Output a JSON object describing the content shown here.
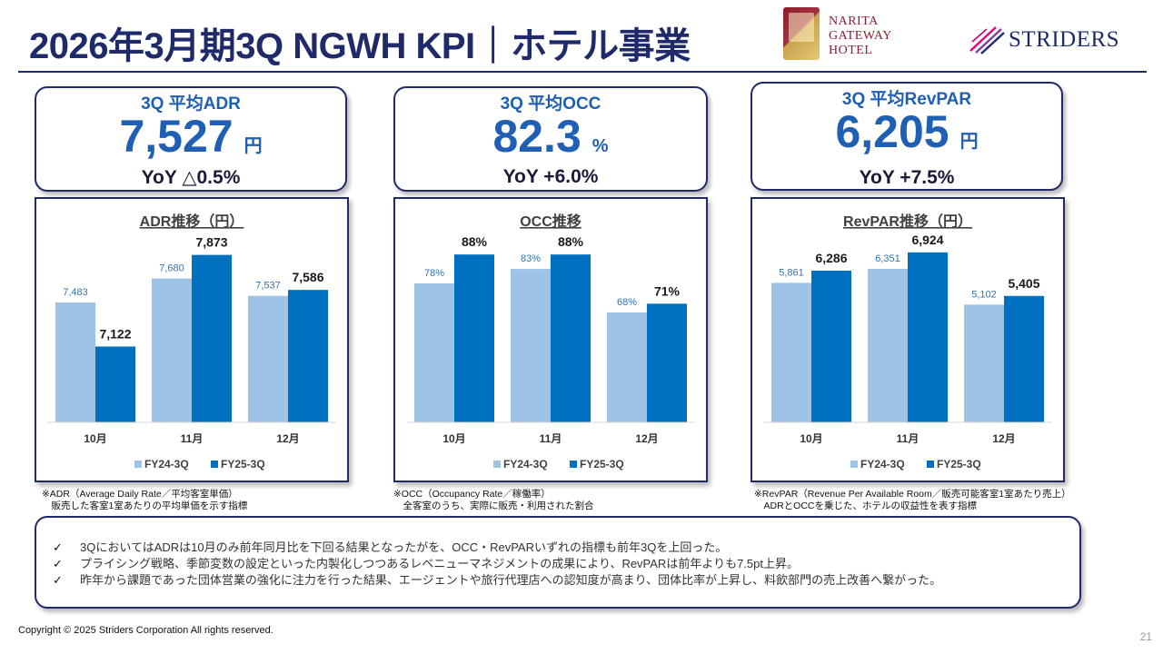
{
  "header": {
    "title": "2026年3月期3Q NGWH KPI｜ホテル事業",
    "hotel_logo_lines": [
      "NARITA",
      "GATEWAY",
      "HOTEL"
    ],
    "brand_name": "STRIDERS"
  },
  "kpis": [
    {
      "label": "3Q 平均ADR",
      "value": "7,527",
      "unit": "円",
      "yoy": "YoY  △0.5%"
    },
    {
      "label": "3Q 平均OCC",
      "value": "82.3",
      "unit": "%",
      "yoy": "YoY  +6.0%"
    },
    {
      "label": "3Q 平均RevPAR",
      "value": "6,205",
      "unit": "円",
      "yoy": "YoY  +7.5%"
    }
  ],
  "colors": {
    "navy": "#1f2a6b",
    "accent_blue": "#1f5fb4",
    "fy24": "#9dc3e6",
    "fy25": "#0070c0"
  },
  "chart_data": [
    {
      "type": "bar",
      "title": "ADR推移（円）",
      "categories": [
        "10月",
        "11月",
        "12月"
      ],
      "series": [
        {
          "name": "FY24-3Q",
          "values": [
            7483,
            7680,
            7537
          ],
          "labels": [
            "7,483",
            "7,680",
            "7,537"
          ]
        },
        {
          "name": "FY25-3Q",
          "values": [
            7122,
            7873,
            7586
          ],
          "labels": [
            "7,122",
            "7,873",
            "7,586"
          ]
        }
      ],
      "ylim": [
        6500,
        7900
      ],
      "legend": "bottom",
      "grid": false
    },
    {
      "type": "bar",
      "title": "OCC推移",
      "categories": [
        "10月",
        "11月",
        "12月"
      ],
      "series": [
        {
          "name": "FY24-3Q",
          "values": [
            78,
            83,
            68
          ],
          "labels": [
            "78%",
            "83%",
            "68%"
          ]
        },
        {
          "name": "FY25-3Q",
          "values": [
            88,
            88,
            71
          ],
          "labels": [
            "88%",
            "88%",
            "71%"
          ]
        }
      ],
      "ylim": [
        30,
        89
      ],
      "legend": "bottom",
      "grid": false
    },
    {
      "type": "bar",
      "title": "RevPAR推移（円）",
      "categories": [
        "10月",
        "11月",
        "12月"
      ],
      "series": [
        {
          "name": "FY24-3Q",
          "values": [
            5861,
            6351,
            5102
          ],
          "labels": [
            "5,861",
            "6,351",
            "5,102"
          ]
        },
        {
          "name": "FY25-3Q",
          "values": [
            6286,
            6924,
            5405
          ],
          "labels": [
            "6,286",
            "6,924",
            "5,405"
          ]
        }
      ],
      "ylim": [
        1000,
        6950
      ],
      "legend": "bottom",
      "grid": false
    }
  ],
  "notes": [
    [
      "※ADR（Average Daily Rate／平均客室単価）",
      "　販売した客室1室あたりの平均単価を示す指標"
    ],
    [
      "※OCC（Occupancy Rate／稼働率）",
      "　全客室のうち、実際に販売・利用された割合"
    ],
    [
      "※RevPAR（Revenue Per Available Room／販売可能客室1室あたり売上）",
      "　ADRとOCCを乗じた、ホテルの収益性を表す指標"
    ]
  ],
  "summary": {
    "check_mark": "✓",
    "items": [
      "3QにおいてはADRは10月のみ前年同月比を下回る結果となったがを、OCC・RevPARいずれの指標も前年3Qを上回った。",
      "プライシング戦略、季節変数の設定といった内製化しつつあるレベニューマネジメントの成果により、RevPARは前年よりも7.5pt上昇。",
      "昨年から課題であった団体営業の強化に注力を行った結果、エージェントや旅行代理店への認知度が高まり、団体比率が上昇し、料飲部門の売上改善へ繋がった。"
    ]
  },
  "footer": {
    "copyright": "Copyright © 2025 Striders Corporation All rights reserved.",
    "page": "21"
  }
}
